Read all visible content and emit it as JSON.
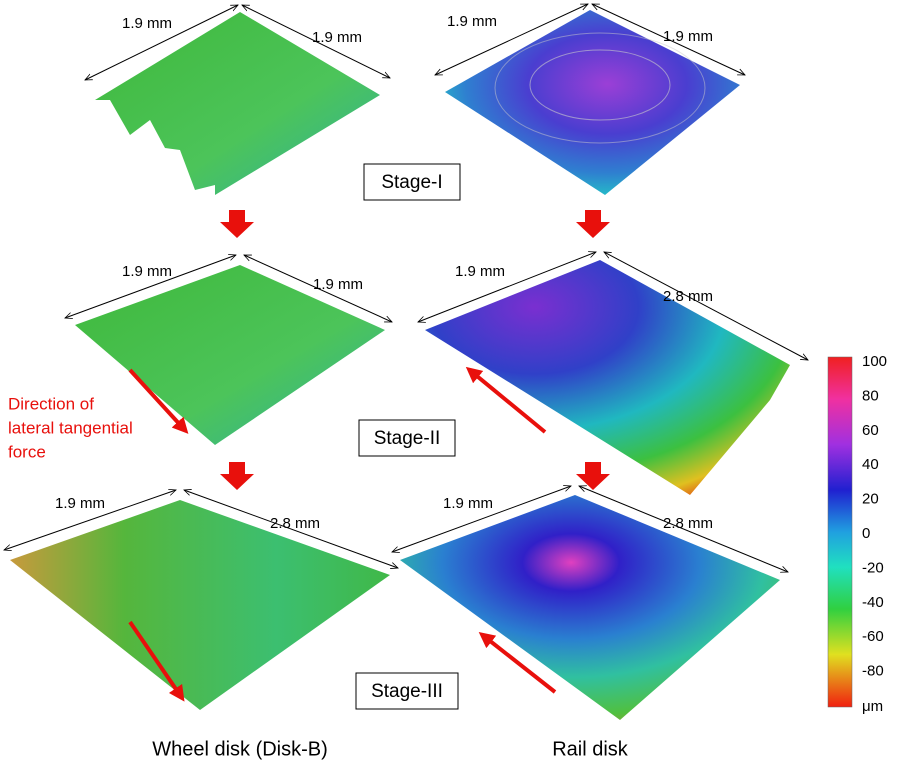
{
  "panels": [
    {
      "dims": [
        "1.9 mm",
        "1.9 mm"
      ]
    },
    {
      "dims": [
        "1.9 mm",
        "1.9 mm"
      ]
    },
    {
      "dims": [
        "1.9 mm",
        "1.9 mm"
      ]
    },
    {
      "dims": [
        "1.9 mm",
        "2.8 mm"
      ]
    },
    {
      "dims": [
        "1.9 mm",
        "2.8 mm"
      ]
    },
    {
      "dims": [
        "1.9 mm",
        "2.8 mm"
      ]
    }
  ],
  "stages": [
    "Stage-I",
    "Stage-II",
    "Stage-III"
  ],
  "annotation": [
    "Direction of",
    "lateral tangential",
    "force"
  ],
  "colorbar": {
    "ticks": [
      100,
      80,
      60,
      40,
      20,
      0,
      -20,
      -40,
      -60,
      -80
    ],
    "unit": "μm"
  },
  "columns": [
    "Wheel disk (Disk-B)",
    "Rail disk"
  ]
}
